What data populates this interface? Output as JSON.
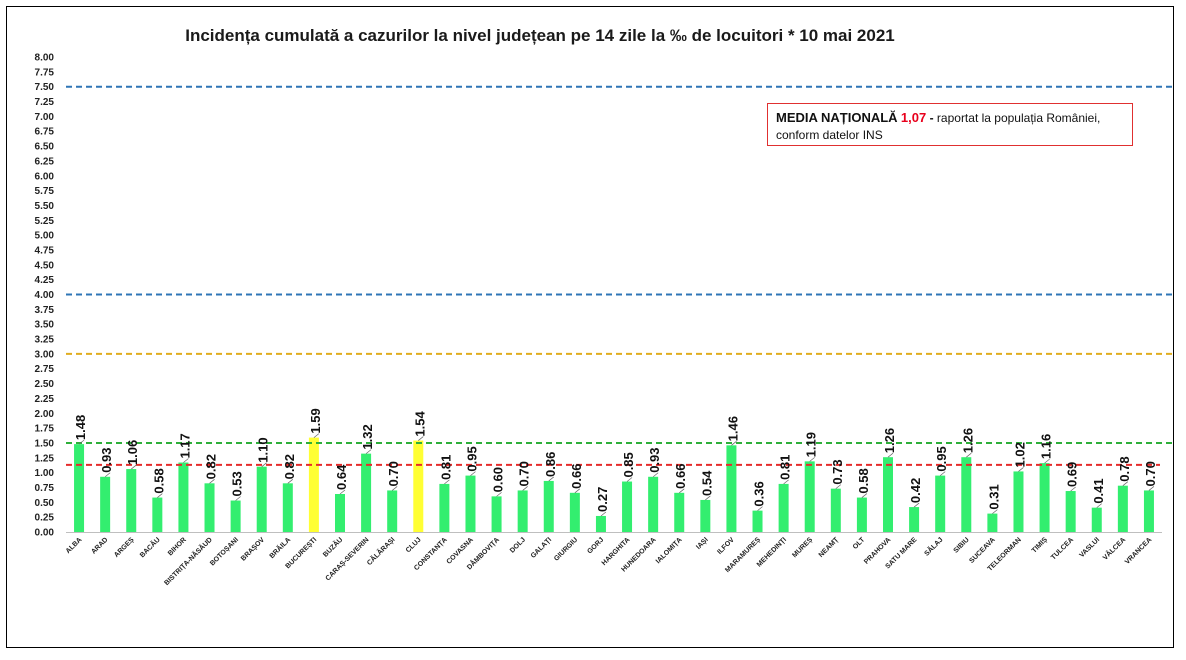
{
  "title": "Incidența cumulată a cazurilor la nivel județean pe 14 zile la ‰ de locuitori *  10 mai 2021",
  "note": {
    "lead": "MEDIA NAȚIONALĂ",
    "value": "1,07",
    "dash": "-",
    "rest": "raportat la populația României,",
    "line2": "conform datelor INS"
  },
  "colors": {
    "bar": "#33ee6f",
    "highlight": "#ffff33",
    "line_blue": "#2e75b6",
    "line_gold": "#e0ad1f",
    "line_green": "#2eaf3a",
    "line_red": "#e52b2b"
  },
  "chart_data": {
    "type": "bar",
    "title": "Incidența cumulată a cazurilor la nivel județean pe 14 zile la ‰ de locuitori *  10 mai 2021",
    "xlabel": "",
    "ylabel": "",
    "ylim": [
      0,
      8
    ],
    "ytick_step": 0.25,
    "yticks": [
      "0.00",
      "0.25",
      "0.50",
      "0.75",
      "1.00",
      "1.25",
      "1.50",
      "1.75",
      "2.00",
      "2.25",
      "2.50",
      "2.75",
      "3.00",
      "3.25",
      "3.50",
      "3.75",
      "4.00",
      "4.25",
      "4.50",
      "4.75",
      "5.00",
      "5.25",
      "5.50",
      "5.75",
      "6.00",
      "6.25",
      "6.50",
      "6.75",
      "7.00",
      "7.25",
      "7.50",
      "7.75",
      "8.00"
    ],
    "grid": false,
    "categories": [
      "ALBA",
      "ARAD",
      "ARGEȘ",
      "BACĂU",
      "BIHOR",
      "BISTRIȚA-NĂSĂUD",
      "BOTOȘANI",
      "BRAȘOV",
      "BRĂILA",
      "BUCUREȘTI",
      "BUZĂU",
      "CARAȘ-SEVERIN",
      "CĂLĂRAȘI",
      "CLUJ",
      "CONSTANȚA",
      "COVASNA",
      "DÂMBOVIȚA",
      "DOLJ",
      "GALAȚI",
      "GIURGIU",
      "GORJ",
      "HARGHITA",
      "HUNEDOARA",
      "IALOMIȚA",
      "IAȘI",
      "ILFOV",
      "MARAMUREȘ",
      "MEHEDINȚI",
      "MUREȘ",
      "NEAMȚ",
      "OLT",
      "PRAHOVA",
      "SATU MARE",
      "SĂLAJ",
      "SIBIU",
      "SUCEAVA",
      "TELEORMAN",
      "TIMIȘ",
      "TULCEA",
      "VASLUI",
      "VÂLCEA",
      "VRANCEA"
    ],
    "values": [
      1.48,
      0.93,
      1.06,
      0.58,
      1.17,
      0.82,
      0.53,
      1.1,
      0.82,
      1.59,
      0.64,
      1.32,
      0.7,
      1.54,
      0.81,
      0.95,
      0.6,
      0.7,
      0.86,
      0.66,
      0.27,
      0.85,
      0.93,
      0.66,
      0.54,
      1.46,
      0.36,
      0.81,
      1.19,
      0.73,
      0.58,
      1.26,
      0.42,
      0.95,
      1.26,
      0.31,
      1.02,
      1.16,
      0.69,
      0.41,
      0.78,
      0.7
    ],
    "value_labels": [
      "1.48",
      "0.93",
      "1.06",
      "0.58",
      "1.17",
      "0.82",
      "0.53",
      "1.10",
      "0.82",
      "1.59",
      "0.64",
      "1.32",
      "0.70",
      "1.54",
      "0.81",
      "0.95",
      "0.60",
      "0.70",
      "0.86",
      "0.66",
      "0.27",
      "0.85",
      "0.93",
      "0.66",
      "0.54",
      "1.46",
      "0.36",
      "0.81",
      "1.19",
      "0.73",
      "0.58",
      "1.26",
      "0.42",
      "0.95",
      "1.26",
      "0.31",
      "1.02",
      "1.16",
      "0.69",
      "0.41",
      "0.78",
      "0.70"
    ],
    "highlighted": [
      "BUCUREȘTI",
      "CLUJ"
    ],
    "reference_lines": [
      {
        "value": 7.5,
        "color": "blue",
        "style": "dashed"
      },
      {
        "value": 4.0,
        "color": "blue",
        "style": "dashed"
      },
      {
        "value": 3.0,
        "color": "gold",
        "style": "dashed"
      },
      {
        "value": 1.5,
        "color": "green",
        "style": "dashed"
      },
      {
        "value": 1.13,
        "color": "red",
        "style": "dashed"
      }
    ]
  }
}
